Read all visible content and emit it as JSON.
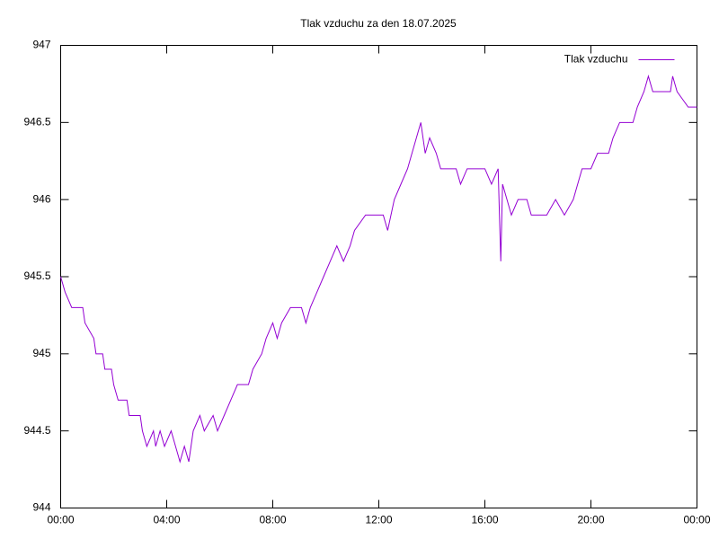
{
  "chart_data": {
    "type": "line",
    "title": "Tlak vzduchu za den 18.07.2025",
    "x": [
      0,
      10,
      25,
      50,
      55,
      75,
      80,
      95,
      100,
      115,
      120,
      130,
      150,
      155,
      180,
      185,
      195,
      210,
      215,
      225,
      235,
      250,
      260,
      270,
      280,
      290,
      300,
      315,
      325,
      345,
      355,
      370,
      385,
      400,
      425,
      435,
      455,
      465,
      480,
      490,
      500,
      520,
      545,
      555,
      565,
      580,
      595,
      610,
      625,
      640,
      655,
      665,
      690,
      730,
      740,
      755,
      770,
      785,
      795,
      805,
      815,
      825,
      835,
      850,
      860,
      895,
      905,
      920,
      960,
      975,
      990,
      996,
      1000,
      1010,
      1020,
      1035,
      1055,
      1065,
      1100,
      1120,
      1140,
      1160,
      1170,
      1180,
      1200,
      1215,
      1240,
      1250,
      1265,
      1295,
      1305,
      1320,
      1330,
      1340,
      1380,
      1385,
      1395,
      1420,
      1440
    ],
    "series": [
      {
        "name": "Tlak vzduchu",
        "color": "#9400d3",
        "values": [
          945.5,
          945.4,
          945.3,
          945.3,
          945.2,
          945.1,
          945.0,
          945.0,
          944.9,
          944.9,
          944.8,
          944.7,
          944.7,
          944.6,
          944.6,
          944.5,
          944.4,
          944.5,
          944.4,
          944.5,
          944.4,
          944.5,
          944.4,
          944.3,
          944.4,
          944.3,
          944.5,
          944.6,
          944.5,
          944.6,
          944.5,
          944.6,
          944.7,
          944.8,
          944.8,
          944.9,
          945.0,
          945.1,
          945.2,
          945.1,
          945.2,
          945.3,
          945.3,
          945.2,
          945.3,
          945.4,
          945.5,
          945.6,
          945.7,
          945.6,
          945.7,
          945.8,
          945.9,
          945.9,
          945.8,
          946.0,
          946.1,
          946.2,
          946.3,
          946.4,
          946.5,
          946.3,
          946.4,
          946.3,
          946.2,
          946.2,
          946.1,
          946.2,
          946.2,
          946.1,
          946.2,
          945.6,
          946.1,
          946.0,
          945.9,
          946.0,
          946.0,
          945.9,
          945.9,
          946.0,
          945.9,
          946.0,
          946.1,
          946.2,
          946.2,
          946.3,
          946.3,
          946.4,
          946.5,
          946.5,
          946.6,
          946.7,
          946.8,
          946.7,
          946.7,
          946.8,
          946.7,
          946.6,
          946.6
        ]
      }
    ],
    "xlim": [
      0,
      1440
    ],
    "xticks": [
      {
        "value": 0,
        "label": "00:00"
      },
      {
        "value": 240,
        "label": "04:00"
      },
      {
        "value": 480,
        "label": "08:00"
      },
      {
        "value": 720,
        "label": "12:00"
      },
      {
        "value": 960,
        "label": "16:00"
      },
      {
        "value": 1200,
        "label": "20:00"
      },
      {
        "value": 1440,
        "label": "00:00"
      }
    ],
    "ylim": [
      944,
      947
    ],
    "yticks": [
      944,
      944.5,
      945,
      945.5,
      946,
      946.5,
      947
    ],
    "grid": false,
    "legend": "top-right"
  }
}
